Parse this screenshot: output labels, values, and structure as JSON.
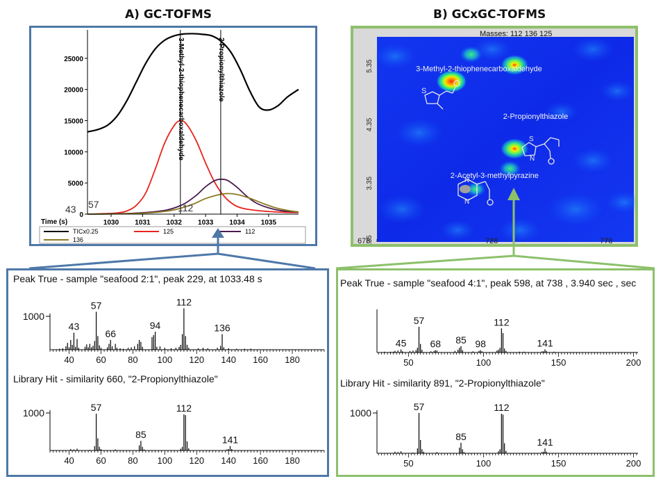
{
  "titles": {
    "a": "A) GC-TOFMS",
    "b": "B) GCxGC-TOFMS"
  },
  "gc_chart": {
    "type": "line",
    "xlabel": "Time (s)",
    "ylim": [
      0,
      29000
    ],
    "xlim": [
      1029.25,
      1035.95
    ],
    "yticks": [
      0,
      5000,
      10000,
      15000,
      20000,
      25000
    ],
    "xticks": [
      1030,
      1031,
      1032,
      1033,
      1034,
      1035
    ],
    "baseline_labels": [
      "43",
      "57",
      "112"
    ],
    "markers": [
      {
        "x": 1032.2,
        "label": "3-Methyl-2-thiophenecarboxaldehyde"
      },
      {
        "x": 1033.48,
        "label": "2-Propionylthiazole"
      }
    ],
    "series": [
      {
        "name": "TICx0.25",
        "color": "#000000",
        "x": [
          1029.25,
          1029.6,
          1029.9,
          1030.2,
          1030.5,
          1030.8,
          1031.1,
          1031.4,
          1031.7,
          1032.0,
          1032.3,
          1032.6,
          1032.9,
          1033.2,
          1033.5,
          1033.8,
          1034.1,
          1034.4,
          1034.7,
          1035.0,
          1035.3,
          1035.6,
          1035.95
        ],
        "y": [
          13200,
          13600,
          14300,
          15800,
          18200,
          21200,
          24200,
          26500,
          27900,
          28600,
          28900,
          28950,
          28850,
          28600,
          27700,
          26000,
          23200,
          19800,
          17200,
          16700,
          17400,
          18800,
          20000
        ]
      },
      {
        "name": "125",
        "color": "#e8231c",
        "x": [
          1029.25,
          1029.8,
          1030.2,
          1030.5,
          1030.8,
          1031.1,
          1031.4,
          1031.7,
          1032.0,
          1032.2,
          1032.4,
          1032.7,
          1033.0,
          1033.3,
          1033.6,
          1033.9,
          1034.2,
          1034.6,
          1035.0,
          1035.5,
          1035.95
        ],
        "y": [
          0,
          80,
          200,
          500,
          1400,
          3400,
          7200,
          11400,
          14200,
          15000,
          14400,
          11800,
          8200,
          5000,
          2800,
          1500,
          900,
          600,
          420,
          300,
          250
        ]
      },
      {
        "name": "112",
        "color": "#4a1a4f",
        "x": [
          1029.25,
          1030.0,
          1030.6,
          1031.2,
          1031.8,
          1032.3,
          1032.7,
          1033.0,
          1033.3,
          1033.5,
          1033.7,
          1034.0,
          1034.3,
          1034.6,
          1035.0,
          1035.4,
          1035.95
        ],
        "y": [
          0,
          40,
          120,
          300,
          700,
          1600,
          3000,
          4400,
          5400,
          5600,
          5400,
          4300,
          2900,
          1800,
          1000,
          550,
          350
        ]
      },
      {
        "name": "136",
        "color": "#8c7a22",
        "x": [
          1029.25,
          1030.2,
          1031.0,
          1031.6,
          1032.1,
          1032.6,
          1033.0,
          1033.4,
          1033.7,
          1034.0,
          1034.4,
          1034.8,
          1035.2,
          1035.6,
          1035.95
        ],
        "y": [
          0,
          40,
          150,
          380,
          800,
          1600,
          2500,
          3100,
          3300,
          3150,
          2550,
          1750,
          1050,
          600,
          350
        ]
      }
    ]
  },
  "gcxgc_chart": {
    "type": "heatmap",
    "title": "Masses: 112 136 125",
    "xlim": [
      678,
      790
    ],
    "ylim": [
      2.35,
      5.85
    ],
    "xticks": [
      678,
      728,
      778
    ],
    "yticks": [
      2.35,
      3.35,
      4.35,
      5.35
    ],
    "ytick_labels": [
      "2.35",
      "3.35",
      "4.35",
      "5.35"
    ],
    "labels": [
      {
        "text": "3-Methyl-2-thiophenecarboxaldehyde",
        "x": 695,
        "y": 5.26
      },
      {
        "text": "2-Propionylthiazole",
        "x": 733,
        "y": 4.45
      },
      {
        "text": "2-Acetyl-3-methylpyrazine",
        "x": 710,
        "y": 3.44
      }
    ],
    "peaks": [
      {
        "x": 710.5,
        "y": 5.09,
        "intensity": 1.0
      },
      {
        "x": 738,
        "y": 5.37,
        "intensity": 0.8
      },
      {
        "x": 738,
        "y": 3.94,
        "intensity": 0.85
      },
      {
        "x": 719,
        "y": 5.55,
        "intensity": 0.45
      },
      {
        "x": 736,
        "y": 3.6,
        "intensity": 0.4
      },
      {
        "x": 721,
        "y": 3.25,
        "intensity": 0.3
      }
    ]
  },
  "spectra": [
    {
      "title": "Peak True - sample \"seafood 2:1\", peak 229, at 1033.48 s",
      "ymark": "1000",
      "xlim": [
        28,
        200
      ],
      "xticks": [
        40,
        60,
        80,
        100,
        120,
        140,
        160,
        180
      ],
      "peak_labels": [
        43,
        57,
        66,
        94,
        112,
        136
      ],
      "peaks": [
        [
          34,
          0.02
        ],
        [
          36,
          0.03
        ],
        [
          38,
          0.07
        ],
        [
          39,
          0.14
        ],
        [
          40,
          0.05
        ],
        [
          41,
          0.2
        ],
        [
          42,
          0.1
        ],
        [
          43,
          0.35
        ],
        [
          44,
          0.06
        ],
        [
          45,
          0.22
        ],
        [
          46,
          0.04
        ],
        [
          50,
          0.06
        ],
        [
          51,
          0.11
        ],
        [
          52,
          0.05
        ],
        [
          53,
          0.12
        ],
        [
          54,
          0.05
        ],
        [
          55,
          0.08
        ],
        [
          56,
          0.18
        ],
        [
          57,
          0.78
        ],
        [
          58,
          0.28
        ],
        [
          59,
          0.09
        ],
        [
          60,
          0.04
        ],
        [
          64,
          0.05
        ],
        [
          65,
          0.12
        ],
        [
          66,
          0.2
        ],
        [
          67,
          0.07
        ],
        [
          69,
          0.12
        ],
        [
          70,
          0.04
        ],
        [
          72,
          0.03
        ],
        [
          74,
          0.02
        ],
        [
          77,
          0.04
        ],
        [
          79,
          0.05
        ],
        [
          81,
          0.07
        ],
        [
          83,
          0.12
        ],
        [
          84,
          0.2
        ],
        [
          85,
          0.16
        ],
        [
          86,
          0.06
        ],
        [
          92,
          0.26
        ],
        [
          93,
          0.3
        ],
        [
          94,
          0.37
        ],
        [
          95,
          0.06
        ],
        [
          97,
          0.07
        ],
        [
          100,
          0.04
        ],
        [
          104,
          0.03
        ],
        [
          107,
          0.04
        ],
        [
          109,
          0.06
        ],
        [
          110,
          0.1
        ],
        [
          111,
          0.32
        ],
        [
          112,
          0.85
        ],
        [
          113,
          0.28
        ],
        [
          114,
          0.1
        ],
        [
          115,
          0.04
        ],
        [
          121,
          0.03
        ],
        [
          124,
          0.04
        ],
        [
          127,
          0.03
        ],
        [
          133,
          0.04
        ],
        [
          135,
          0.08
        ],
        [
          136,
          0.32
        ],
        [
          137,
          0.05
        ],
        [
          140,
          0.03
        ],
        [
          145,
          0.02
        ],
        [
          150,
          0.02
        ],
        [
          154,
          0.02
        ]
      ]
    },
    {
      "title": "Library Hit - similarity 660, \"2-Propionylthiazole\"",
      "ymark": "1000",
      "xlim": [
        28,
        200
      ],
      "xticks": [
        40,
        60,
        80,
        100,
        120,
        140,
        160,
        180
      ],
      "peak_labels": [
        57,
        85,
        112,
        141
      ],
      "peaks": [
        [
          41,
          0.04
        ],
        [
          43,
          0.03
        ],
        [
          45,
          0.05
        ],
        [
          53,
          0.02
        ],
        [
          56,
          0.12
        ],
        [
          57,
          1.0
        ],
        [
          58,
          0.33
        ],
        [
          59,
          0.1
        ],
        [
          60,
          0.04
        ],
        [
          69,
          0.03
        ],
        [
          84,
          0.14
        ],
        [
          85,
          0.26
        ],
        [
          86,
          0.1
        ],
        [
          87,
          0.03
        ],
        [
          110,
          0.05
        ],
        [
          111,
          0.1
        ],
        [
          112,
          0.98
        ],
        [
          113,
          0.96
        ],
        [
          114,
          0.25
        ],
        [
          115,
          0.06
        ],
        [
          139,
          0.03
        ],
        [
          140,
          0.04
        ],
        [
          141,
          0.12
        ],
        [
          142,
          0.04
        ]
      ]
    },
    {
      "title": "Peak True - sample \"seafood 4:1\", peak 598, at 738 , 3.940 sec , sec",
      "ymark": "",
      "xlim": [
        29,
        203
      ],
      "xticks": [
        50,
        100,
        150,
        200
      ],
      "peak_labels": [
        45,
        57,
        68,
        85,
        98,
        112,
        141
      ],
      "peaks": [
        [
          34,
          0.02
        ],
        [
          38,
          0.02
        ],
        [
          40,
          0.02
        ],
        [
          41,
          0.04
        ],
        [
          43,
          0.05
        ],
        [
          45,
          0.08
        ],
        [
          46,
          0.03
        ],
        [
          51,
          0.04
        ],
        [
          53,
          0.05
        ],
        [
          55,
          0.06
        ],
        [
          56,
          0.12
        ],
        [
          57,
          0.66
        ],
        [
          58,
          0.22
        ],
        [
          59,
          0.07
        ],
        [
          65,
          0.03
        ],
        [
          67,
          0.04
        ],
        [
          68,
          0.06
        ],
        [
          69,
          0.05
        ],
        [
          81,
          0.04
        ],
        [
          83,
          0.07
        ],
        [
          84,
          0.12
        ],
        [
          85,
          0.16
        ],
        [
          86,
          0.06
        ],
        [
          93,
          0.03
        ],
        [
          97,
          0.04
        ],
        [
          98,
          0.06
        ],
        [
          99,
          0.03
        ],
        [
          109,
          0.05
        ],
        [
          110,
          0.07
        ],
        [
          111,
          0.12
        ],
        [
          112,
          0.62
        ],
        [
          113,
          0.5
        ],
        [
          114,
          0.1
        ],
        [
          115,
          0.04
        ],
        [
          124,
          0.02
        ],
        [
          127,
          0.02
        ],
        [
          139,
          0.03
        ],
        [
          140,
          0.03
        ],
        [
          141,
          0.08
        ],
        [
          142,
          0.04
        ],
        [
          147,
          0.02
        ]
      ]
    },
    {
      "title": "Library Hit - similarity 891, \"2-Propionylthiazole\"",
      "ymark": "1000",
      "xlim": [
        29,
        203
      ],
      "xticks": [
        50,
        100,
        150,
        200
      ],
      "peak_labels": [
        57,
        85,
        112,
        141
      ],
      "peaks": [
        [
          41,
          0.04
        ],
        [
          43,
          0.03
        ],
        [
          45,
          0.05
        ],
        [
          53,
          0.02
        ],
        [
          56,
          0.12
        ],
        [
          57,
          1.0
        ],
        [
          58,
          0.33
        ],
        [
          59,
          0.1
        ],
        [
          60,
          0.04
        ],
        [
          69,
          0.03
        ],
        [
          84,
          0.14
        ],
        [
          85,
          0.26
        ],
        [
          86,
          0.1
        ],
        [
          87,
          0.03
        ],
        [
          110,
          0.05
        ],
        [
          111,
          0.1
        ],
        [
          112,
          0.98
        ],
        [
          113,
          0.96
        ],
        [
          114,
          0.25
        ],
        [
          115,
          0.06
        ],
        [
          139,
          0.03
        ],
        [
          140,
          0.04
        ],
        [
          141,
          0.12
        ],
        [
          142,
          0.04
        ]
      ]
    }
  ]
}
